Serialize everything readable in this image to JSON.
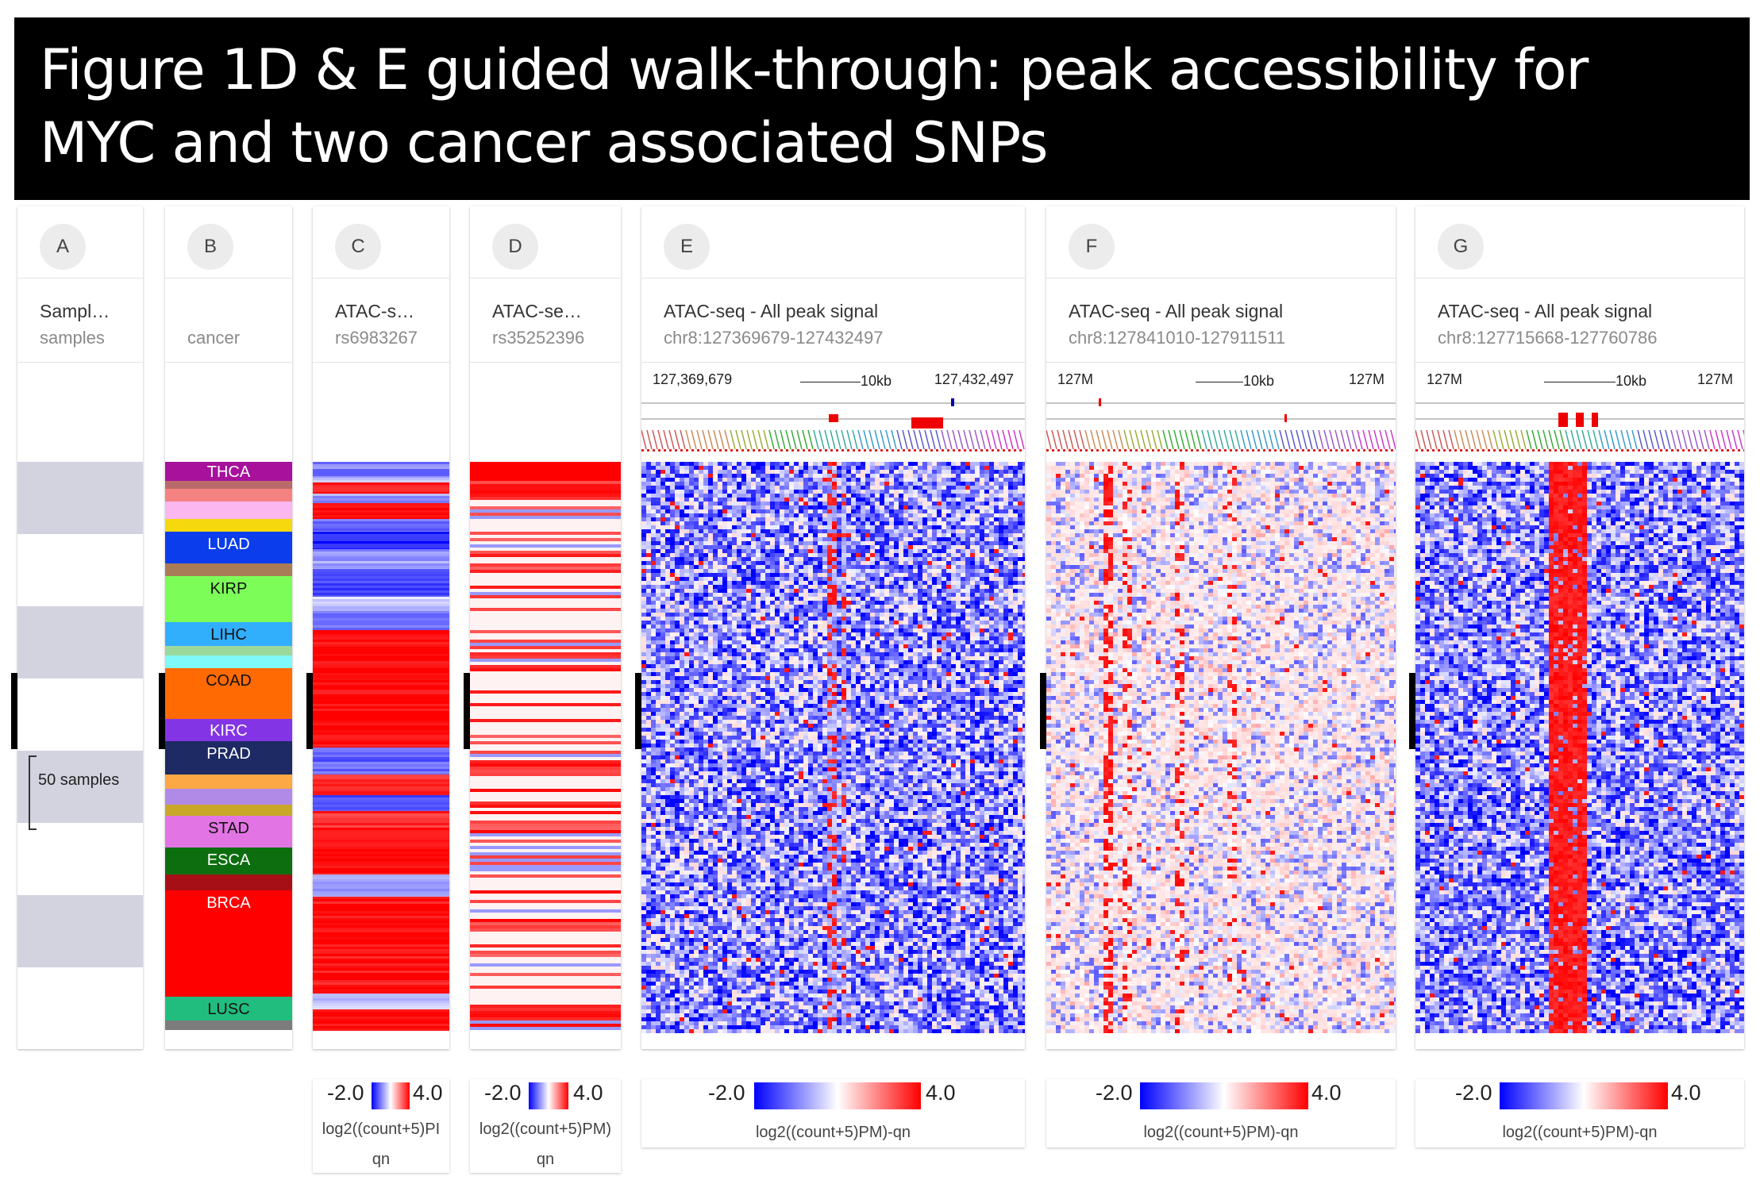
{
  "title": "Figure 1D & E guided walk-through: peak accessibility for MYC and two cancer associated SNPs",
  "columns": [
    {
      "letter": "A",
      "title": "Sampl…",
      "subtitle": "samples"
    },
    {
      "letter": "B",
      "title": "",
      "subtitle": "cancer"
    },
    {
      "letter": "C",
      "title": "ATAC-s…",
      "subtitle": "rs6983267"
    },
    {
      "letter": "D",
      "title": "ATAC-se…",
      "subtitle": "rs35252396"
    },
    {
      "letter": "E",
      "title": "ATAC-seq - All peak signal",
      "subtitle": "chr8:127369679-127432497"
    },
    {
      "letter": "F",
      "title": "ATAC-seq - All peak signal",
      "subtitle": "chr8:127841010-127911511"
    },
    {
      "letter": "G",
      "title": "ATAC-seq - All peak signal",
      "subtitle": "chr8:127715668-127760786"
    }
  ],
  "samples_label": "50 samples",
  "cancer_types": [
    "THCA",
    "LUAD",
    "KIRP",
    "LIHC",
    "COAD",
    "KIRC",
    "PRAD",
    "STAD",
    "ESCA",
    "BRCA",
    "LUSC"
  ],
  "gene_tracks": {
    "E": {
      "left": "127,369,679",
      "scale": "10kb",
      "right": "127,432,497"
    },
    "F": {
      "left": "127M",
      "scale": "10kb",
      "right": "127M"
    },
    "G": {
      "left": "127M",
      "scale": "10kb",
      "right": "127M"
    }
  },
  "legend": {
    "min": "-2.0",
    "max": "4.0",
    "label": "log2((count+5)PM)-qn",
    "label_trunc_c": "log2((count+5)PI",
    "label_trunc_d": "log2((count+5)PM)",
    "label_qn": "qn"
  },
  "colors": {
    "low": "#0000ff",
    "mid": "#ffffff",
    "high": "#ff0000",
    "stripe": "#d3d3e0"
  }
}
